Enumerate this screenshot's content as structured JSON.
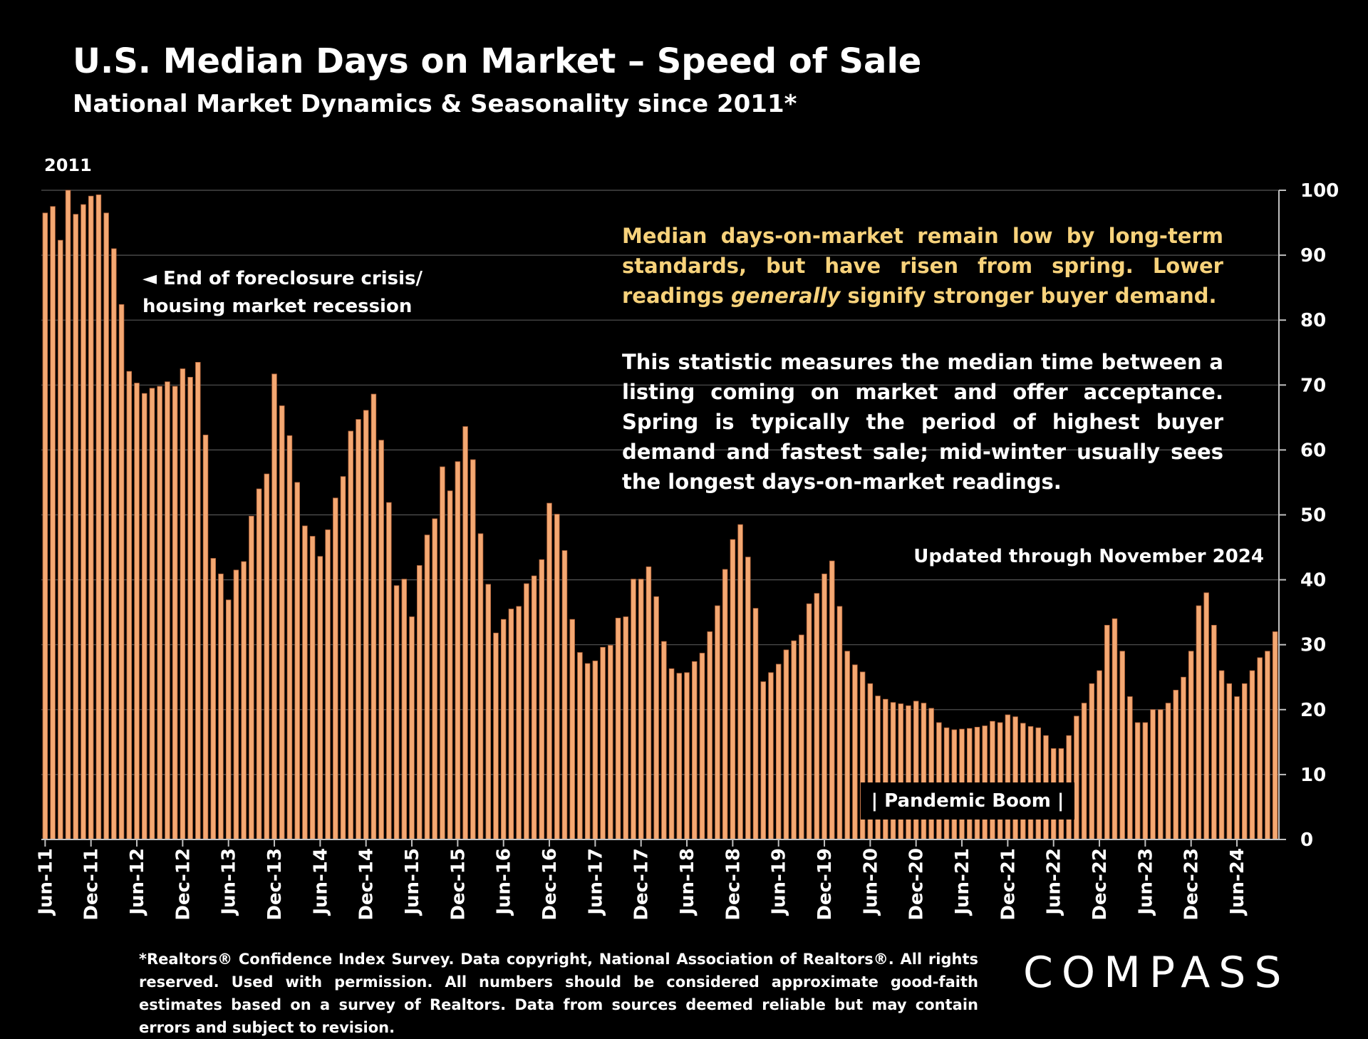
{
  "title": "U.S. Median Days on Market – Speed of Sale",
  "subtitle": "National Market Dynamics & Seasonality since 2011*",
  "year_label": "2011",
  "callout_primary_before": "Median days-on-market remain low by long-term standards, but have risen from spring. Lower readings ",
  "callout_primary_emph": "generally",
  "callout_primary_after": " signify stronger buyer demand.",
  "callout_secondary": "This statistic measures the median time between a listing coming on market and offer acceptance. Spring is typically the period of highest buyer demand and fastest sale; mid-winter usually sees the longest days-on-market readings.",
  "recession_note_line1": "◄ End of foreclosure crisis/",
  "recession_note_line2": "housing market recession",
  "updated_note": "Updated through November 2024",
  "pandemic_note": "| Pandemic Boom |",
  "footnote": "*Realtors® Confidence Index Survey. Data copyright, National Association of Realtors®. All rights reserved. Used with permission. All numbers should be considered approximate good-faith estimates based on a survey of Realtors. Data from sources deemed reliable but may contain errors and subject to revision.",
  "logo": "COMPASS",
  "colors": {
    "bar": "#f4a872",
    "bar_edge": "#b5643a",
    "highlight": "#f7d27b",
    "grid": "#555555"
  },
  "chart_data": {
    "type": "bar",
    "ylim": [
      0,
      100
    ],
    "y_ticks": [
      0,
      10,
      20,
      30,
      40,
      50,
      60,
      70,
      80,
      90,
      100
    ],
    "y_axis_side": "right",
    "grid": true,
    "x_tick_labels": [
      "Jun-11",
      "Dec-11",
      "Jun-12",
      "Dec-12",
      "Jun-13",
      "Dec-13",
      "Jun-14",
      "Dec-14",
      "Jun-15",
      "Dec-15",
      "Jun-16",
      "Dec-16",
      "Jun-17",
      "Dec-17",
      "Jun-18",
      "Dec-18",
      "Jun-19",
      "Dec-19",
      "Jun-20",
      "Dec-20",
      "Jun-21",
      "Dec-21",
      "Jun-22",
      "Dec-22",
      "Jun-23",
      "Dec-23",
      "Jun-24"
    ],
    "x_tick_label_rotation": "vertical",
    "first_period": "Jun-11",
    "last_period": "Nov-24",
    "values": [
      96.5,
      97.5,
      92.3,
      100,
      96.3,
      97.8,
      99.1,
      99.3,
      96.5,
      91,
      82.4,
      72.1,
      70.3,
      68.7,
      69.5,
      69.8,
      70.5,
      69.8,
      72.5,
      71.2,
      73.5,
      62.3,
      43.3,
      40.9,
      36.9,
      41.5,
      42.8,
      49.8,
      54,
      56.3,
      71.7,
      66.8,
      62.2,
      55,
      48.3,
      46.7,
      43.6,
      47.7,
      52.6,
      55.9,
      62.9,
      64.7,
      66.1,
      68.6,
      61.5,
      51.9,
      39.1,
      40.1,
      34.3,
      42.2,
      46.9,
      49.4,
      57.4,
      53.7,
      58.2,
      63.6,
      58.5,
      47.1,
      39.3,
      31.8,
      33.9,
      35.5,
      35.9,
      39.4,
      40.6,
      43.1,
      51.8,
      50.1,
      44.5,
      33.9,
      28.8,
      27.1,
      27.5,
      29.6,
      29.9,
      34.1,
      34.3,
      40.1,
      40.1,
      42,
      37.4,
      30.5,
      26.3,
      25.6,
      25.7,
      27.4,
      28.7,
      32,
      36,
      41.6,
      46.2,
      48.5,
      43.5,
      35.6,
      24.3,
      25.7,
      27,
      29.2,
      30.6,
      31.5,
      36.3,
      37.9,
      40.9,
      42.9,
      35.9,
      29,
      26.9,
      25.8,
      24,
      22.1,
      21.6,
      21.1,
      20.9,
      20.6,
      21.3,
      21,
      20.2,
      18,
      17.2,
      16.9,
      17,
      17.1,
      17.3,
      17.5,
      18.2,
      18,
      19.2,
      18.9,
      17.9,
      17.4,
      17.2,
      16,
      14,
      14,
      16,
      19,
      21,
      24,
      26,
      33,
      34,
      29,
      22,
      18,
      18,
      20,
      20,
      21,
      23,
      25,
      29,
      36,
      38,
      33,
      26,
      24,
      22,
      24,
      26,
      28,
      29,
      32
    ]
  }
}
